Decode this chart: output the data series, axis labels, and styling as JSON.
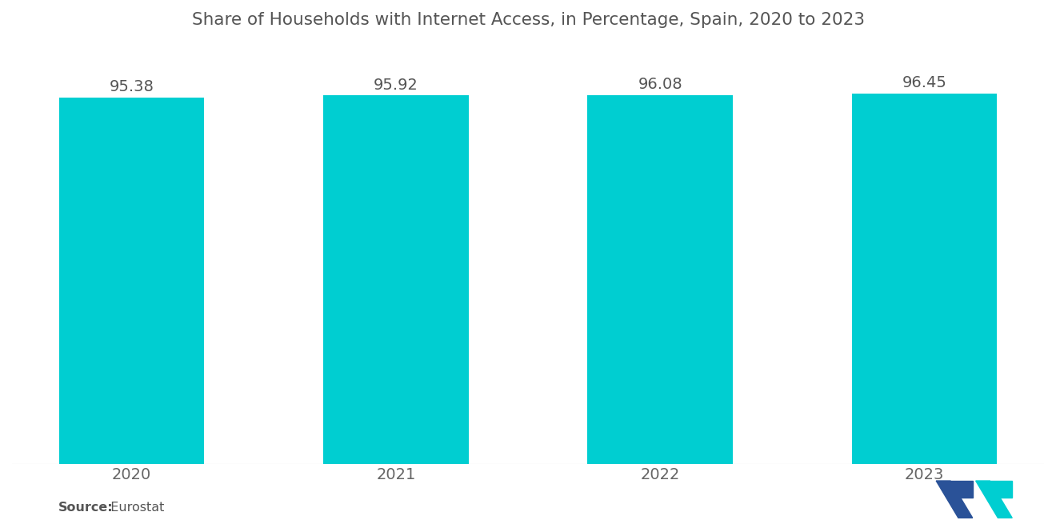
{
  "title": "Share of Households with Internet Access, in Percentage, Spain, 2020 to 2023",
  "categories": [
    "2020",
    "2021",
    "2022",
    "2023"
  ],
  "values": [
    95.38,
    95.92,
    96.08,
    96.45
  ],
  "bar_color": "#00CED1",
  "background_color": "#ffffff",
  "title_fontsize": 15.5,
  "label_fontsize": 14,
  "tick_fontsize": 14,
  "source_bold": "Source:",
  "source_normal": "  Eurostat",
  "ylim_min": 0,
  "ylim_max": 108,
  "bar_width": 0.55
}
